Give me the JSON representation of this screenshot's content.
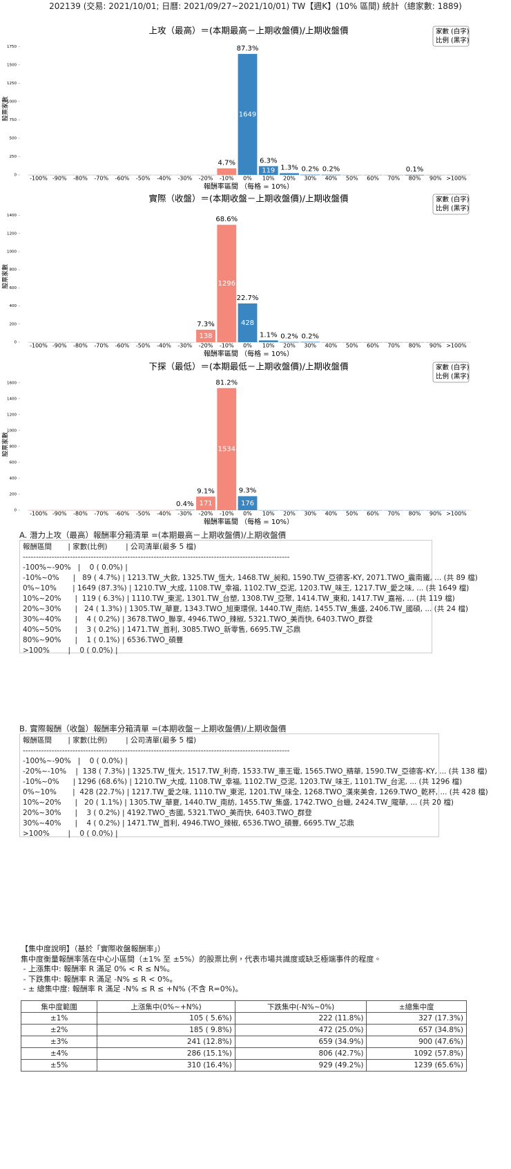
{
  "header": {
    "title": "202139 (交易: 2021/10/01; 日曆: 2021/09/27~2021/10/01) TW【週K】(10% 區間) 統計（總家數: 1889)"
  },
  "chart_data": [
    {
      "type": "bar",
      "title": "上攻（最高）＝(本期最高－上期收盤價)/上期收盤價",
      "x_label": "報酬率區間 （每格 = 10%）",
      "y_label": "股票家數",
      "legend": [
        "家數 (白字)",
        "比例 (黑字)"
      ],
      "categories": [
        "-100%",
        "-90%",
        "-80%",
        "-70%",
        "-60%",
        "-50%",
        "-40%",
        "-30%",
        "-20%",
        "-10%",
        "0%",
        "10%",
        "20%",
        "30%",
        "40%",
        "50%",
        "60%",
        "70%",
        "80%",
        "90%",
        ">100%"
      ],
      "values": [
        0,
        0,
        0,
        0,
        0,
        0,
        0,
        0,
        0,
        89,
        1649,
        119,
        24,
        4,
        3,
        0,
        0,
        0,
        1,
        0,
        0
      ],
      "percent_labels": [
        null,
        null,
        null,
        null,
        null,
        null,
        null,
        null,
        null,
        "4.7%",
        "87.3%",
        "6.3%",
        "1.3%",
        "0.2%",
        "0.2%",
        null,
        null,
        null,
        "0.1%",
        null,
        null
      ],
      "colors": [
        "#f4897b",
        "#f4897b",
        "#f4897b",
        "#f4897b",
        "#f4897b",
        "#f4897b",
        "#f4897b",
        "#f4897b",
        "#f4897b",
        "#f4897b",
        "#3a86c3",
        "#3a86c3",
        "#3a86c3",
        "#3a86c3",
        "#3a86c3",
        "#3a86c3",
        "#3a86c3",
        "#3a86c3",
        "#3a86c3",
        "#3a86c3",
        "#3a86c3"
      ],
      "ylim": [
        0,
        1800
      ],
      "yticks": [
        0,
        250,
        500,
        750,
        1000,
        1250,
        1500,
        1750
      ]
    },
    {
      "type": "bar",
      "title": "實際（收盤）＝(本期收盤－上期收盤價)/上期收盤價",
      "x_label": "報酬率區間 （每格 = 10%）",
      "y_label": "股票家數",
      "legend": [
        "家數 (白字)",
        "比例 (黑字)"
      ],
      "categories": [
        "-100%",
        "-90%",
        "-80%",
        "-70%",
        "-60%",
        "-50%",
        "-40%",
        "-30%",
        "-20%",
        "-10%",
        "0%",
        "10%",
        "20%",
        "30%",
        "40%",
        "50%",
        "60%",
        "70%",
        "80%",
        "90%",
        ">100%"
      ],
      "values": [
        0,
        0,
        0,
        0,
        0,
        0,
        0,
        0,
        138,
        1296,
        428,
        20,
        3,
        4,
        0,
        0,
        0,
        0,
        0,
        0,
        0
      ],
      "percent_labels": [
        null,
        null,
        null,
        null,
        null,
        null,
        null,
        null,
        "7.3%",
        "68.6%",
        "22.7%",
        "1.1%",
        "0.2%",
        "0.2%",
        null,
        null,
        null,
        null,
        null,
        null,
        null
      ],
      "colors": [
        "#f4897b",
        "#f4897b",
        "#f4897b",
        "#f4897b",
        "#f4897b",
        "#f4897b",
        "#f4897b",
        "#f4897b",
        "#f4897b",
        "#f4897b",
        "#3a86c3",
        "#3a86c3",
        "#3a86c3",
        "#3a86c3",
        "#3a86c3",
        "#3a86c3",
        "#3a86c3",
        "#3a86c3",
        "#3a86c3",
        "#3a86c3",
        "#3a86c3"
      ],
      "ylim": [
        0,
        1450
      ],
      "yticks": [
        0,
        200,
        400,
        600,
        800,
        1000,
        1200,
        1400
      ]
    },
    {
      "type": "bar",
      "title": "下探（最低）＝(本期最低－上期收盤價)/上期收盤價",
      "x_label": "報酬率區間 （每格 = 10%）",
      "y_label": "股票家數",
      "legend": [
        "家數 (白字)",
        "比例 (黑字)"
      ],
      "categories": [
        "-100%",
        "-90%",
        "-80%",
        "-70%",
        "-60%",
        "-50%",
        "-40%",
        "-30%",
        "-20%",
        "-10%",
        "0%",
        "10%",
        "20%",
        "30%",
        "40%",
        "50%",
        "60%",
        "70%",
        "80%",
        "90%",
        ">100%"
      ],
      "values": [
        0,
        0,
        0,
        0,
        0,
        0,
        0,
        8,
        171,
        1534,
        176,
        0,
        0,
        0,
        0,
        0,
        0,
        0,
        0,
        0,
        0
      ],
      "percent_labels": [
        null,
        null,
        null,
        null,
        null,
        null,
        null,
        "0.4%",
        "9.1%",
        "81.2%",
        "9.3%",
        null,
        null,
        null,
        null,
        null,
        null,
        null,
        null,
        null,
        null
      ],
      "colors": [
        "#f4897b",
        "#f4897b",
        "#f4897b",
        "#f4897b",
        "#f4897b",
        "#f4897b",
        "#f4897b",
        "#f4897b",
        "#f4897b",
        "#f4897b",
        "#3a86c3",
        "#3a86c3",
        "#3a86c3",
        "#3a86c3",
        "#3a86c3",
        "#3a86c3",
        "#3a86c3",
        "#3a86c3",
        "#3a86c3",
        "#3a86c3",
        "#3a86c3"
      ],
      "ylim": [
        0,
        1650
      ],
      "yticks": [
        0,
        200,
        400,
        600,
        800,
        1000,
        1200,
        1400,
        1600
      ]
    }
  ],
  "list_a": {
    "title": "A. 潛力上攻（最高）報酬率分箱清單 =(本期最高－上期收盤價)/上期收盤價",
    "lines": [
      "報酬區間       | 家數(比例)        | 公司清單(最多 5 檔)",
      "------------------------------------------------------------------------------------------------------",
      "-100%~-90%   |    0 ( 0.0%) |",
      "-10%~0%      |   89 ( 4.7%) | 1213.TW_大飲, 1325.TW_恆大, 1468.TW_昶和, 1590.TW_亞德客-KY, 2071.TWO_震南鐵, ... (共 89 檔)",
      "0%~10%       | 1649 (87.3%) | 1210.TW_大成, 1108.TW_幸福, 1102.TW_亞泥, 1203.TW_味王, 1217.TW_愛之味, ... (共 1649 檔)",
      "10%~20%      |  119 ( 6.3%) | 1110.TW_東泥, 1301.TW_台塑, 1308.TW_亞聚, 1414.TW_東和, 1417.TW_嘉裕, ... (共 119 檔)",
      "20%~30%      |   24 ( 1.3%) | 1305.TW_華夏, 1343.TWO_旭東環保, 1440.TW_南紡, 1455.TW_集盛, 2406.TW_國碩, ... (共 24 檔)",
      "30%~40%      |    4 ( 0.2%) | 3678.TWO_聯享, 4946.TWO_辣椒, 5321.TWO_美而快, 6403.TWO_群登",
      "40%~50%      |    3 ( 0.2%) | 1471.TW_首利, 3085.TWO_新零售, 6695.TW_芯鼎",
      "80%~90%      |    1 ( 0.1%) | 6536.TWO_碩豐",
      ">100%        |    0 ( 0.0%) |"
    ]
  },
  "list_b": {
    "title": "B. 實際報酬（收盤）報酬率分箱清單 =(本期收盤－上期收盤價)/上期收盤價",
    "lines": [
      "報酬區間       | 家數(比例)        | 公司清單(最多 5 檔)",
      "------------------------------------------------------------------------------------------------------",
      "-100%~-90%   |    0 ( 0.0%) |",
      "-20%~-10%    |  138 ( 7.3%) | 1325.TW_恆大, 1517.TW_利奇, 1533.TW_車王電, 1565.TWO_精華, 1590.TW_亞德客-KY, ... (共 138 檔)",
      "-10%~0%      | 1296 (68.6%) | 1210.TW_大成, 1108.TW_幸福, 1102.TW_亞泥, 1203.TW_味王, 1101.TW_台泥, ... (共 1296 檔)",
      "0%~10%       |  428 (22.7%) | 1217.TW_愛之味, 1110.TW_東泥, 1201.TW_味全, 1268.TWO_漢來美食, 1269.TWO_乾杯, ... (共 428 檔)",
      "10%~20%      |   20 ( 1.1%) | 1305.TW_華夏, 1440.TW_南紡, 1455.TW_集盛, 1742.TWO_台蠟, 2424.TW_隴華, ... (共 20 檔)",
      "20%~30%      |    3 ( 0.2%) | 4192.TWO_杏國, 5321.TWO_美而快, 6403.TWO_群登",
      "30%~40%      |    4 ( 0.2%) | 1471.TW_首利, 4946.TWO_辣椒, 6536.TWO_碩豐, 6695.TW_芯鼎",
      ">100%        |    0 ( 0.0%) |"
    ]
  },
  "notes": {
    "lines": [
      "【集中度說明】（基於「實際收盤報酬率」）",
      "集中度衡量報酬率落在中心小區間（±1% 至 ±5%）的股票比例，代表市場共識度或缺乏極端事件的程度。",
      " - 上漲集中: 報酬率 R 滿足 0% < R ≤ N%。",
      " - 下跌集中: 報酬率 R 滿足 -N% ≤ R < 0%。",
      " - ± 總集中度: 報酬率 R 滿足 -N% ≤ R ≤ +N% (不含 R=0%)。"
    ]
  },
  "table": {
    "headers": [
      "集中度範圍",
      "上漲集中(0%~+N%)",
      "下跌集中(-N%~0%)",
      "±總集中度"
    ],
    "rows": [
      [
        "±1%",
        "105 ( 5.6%)",
        "222 (11.8%)",
        "327 (17.3%)"
      ],
      [
        "±2%",
        "185 ( 9.8%)",
        "472 (25.0%)",
        "657 (34.8%)"
      ],
      [
        "±3%",
        "241 (12.8%)",
        "659 (34.9%)",
        "900 (47.6%)"
      ],
      [
        "±4%",
        "286 (15.1%)",
        "806 (42.7%)",
        "1092 (57.8%)"
      ],
      [
        "±5%",
        "310 (16.4%)",
        "929 (49.2%)",
        "1239 (65.6%)"
      ]
    ]
  }
}
